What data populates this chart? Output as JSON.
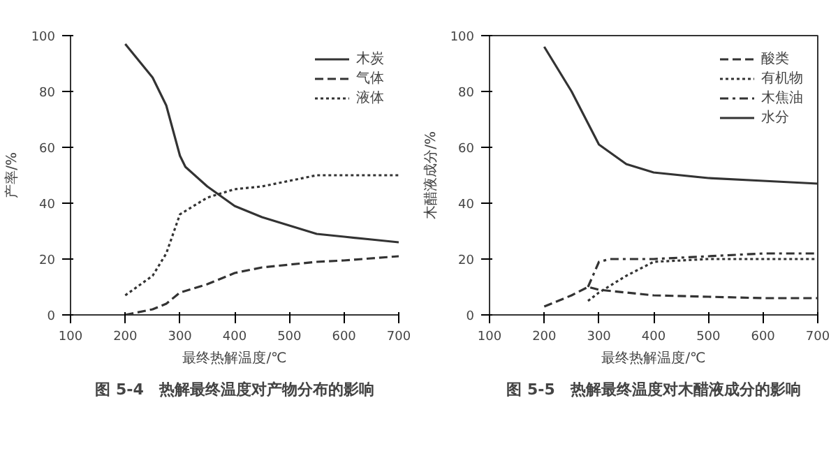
{
  "chart_data": [
    {
      "type": "line",
      "title": "图 5-4　热解最终温度对产物分布的影响",
      "xlabel": "最终热解温度/℃",
      "ylabel": "产率/%",
      "xlim": [
        100,
        700
      ],
      "ylim": [
        0,
        100
      ],
      "xticks": [
        100,
        200,
        300,
        400,
        500,
        600,
        700
      ],
      "yticks": [
        0,
        20,
        40,
        60,
        80,
        100
      ],
      "grid": false,
      "legend": "top right",
      "series": [
        {
          "name": "木炭",
          "color": "#333333",
          "line_style": "solid",
          "x": [
            200,
            250,
            275,
            300,
            310,
            350,
            400,
            450,
            500,
            550,
            600,
            650,
            700
          ],
          "values": [
            97,
            85,
            75,
            57,
            53,
            46,
            39,
            35,
            32,
            29,
            28,
            27,
            26
          ]
        },
        {
          "name": "气体",
          "color": "#333333",
          "line_style": "dashed",
          "x": [
            200,
            250,
            275,
            300,
            350,
            400,
            450,
            500,
            550,
            600,
            700
          ],
          "values": [
            0,
            2,
            4,
            8,
            11,
            15,
            17,
            18,
            19,
            19.5,
            21
          ]
        },
        {
          "name": "液体",
          "color": "#333333",
          "line_style": "dotted",
          "x": [
            200,
            250,
            275,
            300,
            350,
            400,
            450,
            500,
            550,
            600,
            700
          ],
          "values": [
            7,
            14,
            22,
            36,
            42,
            45,
            46,
            48,
            50,
            50,
            50
          ]
        }
      ]
    },
    {
      "type": "line",
      "title": "图 5-5　热解最终温度对木醋液成分的影响",
      "xlabel": "最终热解温度/℃",
      "ylabel": "木醋液成分/%",
      "xlim": [
        100,
        700
      ],
      "ylim": [
        0,
        100
      ],
      "xticks": [
        100,
        200,
        300,
        400,
        500,
        600,
        700
      ],
      "yticks": [
        0,
        20,
        40,
        60,
        80,
        100
      ],
      "grid": false,
      "legend": "top right",
      "series": [
        {
          "name": "酸类",
          "color": "#333333",
          "line_style": "dashed",
          "x": [
            200,
            250,
            280,
            300,
            350,
            400,
            500,
            600,
            700
          ],
          "values": [
            3,
            7,
            10,
            9,
            8,
            7,
            6.5,
            6,
            6
          ]
        },
        {
          "name": "有机物",
          "color": "#333333",
          "line_style": "dotted",
          "x": [
            280,
            300,
            350,
            400,
            500,
            600,
            700
          ],
          "values": [
            5,
            8,
            14,
            19,
            20,
            20,
            20
          ]
        },
        {
          "name": "木焦油",
          "color": "#333333",
          "line_style": "dashdot",
          "x": [
            280,
            300,
            320,
            400,
            500,
            600,
            700
          ],
          "values": [
            10,
            19,
            20,
            20,
            21,
            22,
            22
          ]
        },
        {
          "name": "水分",
          "color": "#333333",
          "line_style": "solid",
          "x": [
            200,
            250,
            300,
            350,
            400,
            500,
            600,
            700
          ],
          "values": [
            96,
            80,
            61,
            54,
            51,
            49,
            48,
            47
          ]
        }
      ]
    }
  ]
}
